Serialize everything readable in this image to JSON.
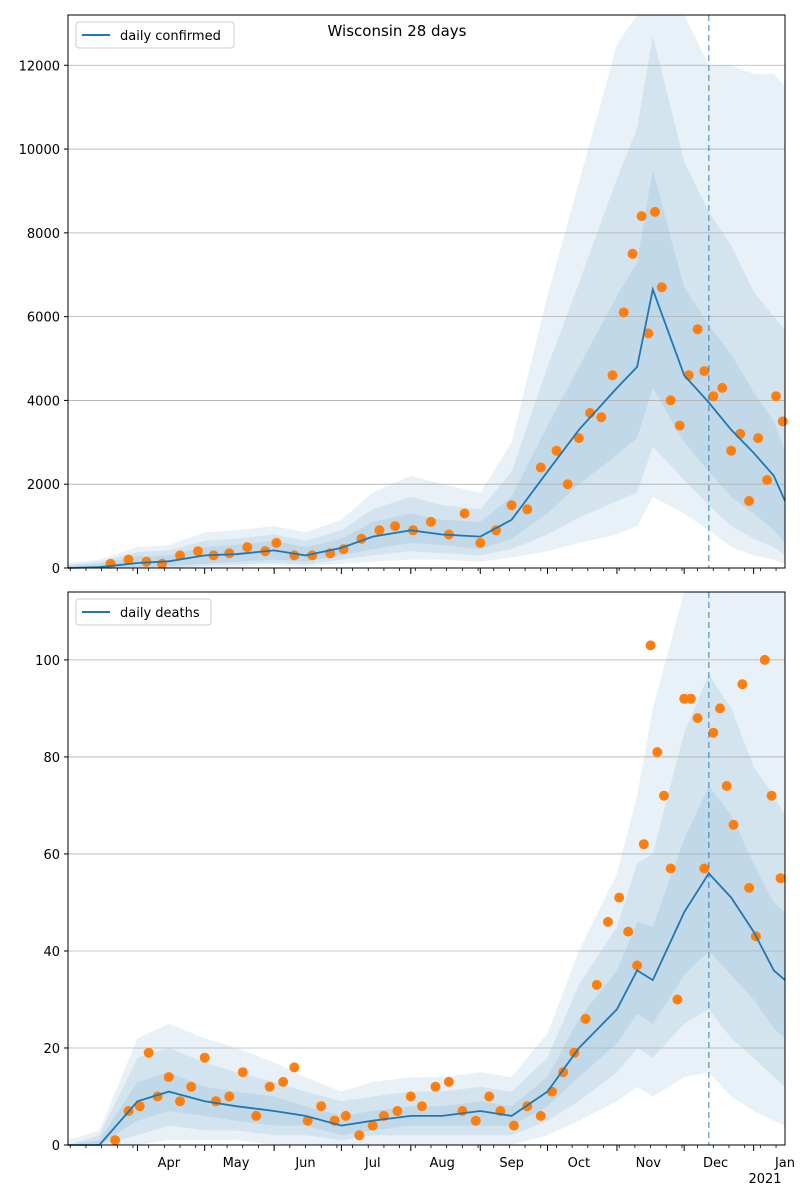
{
  "colors": {
    "line": "#1f77b4",
    "points": "#ff7f0e",
    "band": "#1f77b4",
    "grid": "#b0b0b0",
    "forecast_marker": "#1f77b4"
  },
  "x_axis": {
    "start": "2020-03-01",
    "end": "2021-01-15",
    "month_ticks": [
      "Apr",
      "May",
      "Jun",
      "Jul",
      "Aug",
      "Sep",
      "Oct",
      "Nov",
      "Dec",
      "Jan"
    ],
    "year_label": "2021",
    "forecast_start": "2020-12-12"
  },
  "chart_data": [
    {
      "type": "line",
      "title": "Wisconsin 28 days",
      "legend": {
        "label": "daily confirmed",
        "placement": "top-left"
      },
      "ylim": [
        0,
        13200
      ],
      "yticks": [
        "0",
        "2000",
        "4000",
        "6000",
        "8000",
        "10000",
        "12000"
      ],
      "grid": true,
      "x": [
        "2020-03-01",
        "2020-03-15",
        "2020-04-01",
        "2020-04-15",
        "2020-05-01",
        "2020-05-15",
        "2020-06-01",
        "2020-06-15",
        "2020-07-01",
        "2020-07-15",
        "2020-08-01",
        "2020-08-15",
        "2020-09-01",
        "2020-09-15",
        "2020-10-01",
        "2020-10-15",
        "2020-11-01",
        "2020-11-10",
        "2020-11-17",
        "2020-12-01",
        "2020-12-12",
        "2020-12-22",
        "2021-01-01",
        "2021-01-10",
        "2021-01-15"
      ],
      "series": [
        {
          "name": "daily confirmed",
          "values": [
            0,
            20,
            120,
            160,
            300,
            330,
            420,
            300,
            480,
            750,
            900,
            800,
            750,
            1150,
            2300,
            3300,
            4300,
            4800,
            6650,
            4600,
            3950,
            3300,
            2750,
            2200,
            1600
          ]
        }
      ],
      "bands": [
        {
          "lower": [
            0,
            0,
            20,
            40,
            100,
            150,
            200,
            150,
            300,
            450,
            600,
            550,
            450,
            700,
            1300,
            2000,
            2700,
            3100,
            4300,
            3000,
            2300,
            1700,
            1300,
            900,
            600
          ],
          "upper": [
            50,
            100,
            280,
            300,
            500,
            550,
            650,
            500,
            700,
            1100,
            1300,
            1150,
            1100,
            1700,
            3400,
            4800,
            6500,
            7300,
            9500,
            6700,
            5800,
            5100,
            4200,
            3500,
            2800
          ]
        },
        {
          "lower": [
            0,
            0,
            0,
            0,
            50,
            80,
            120,
            80,
            200,
            300,
            400,
            350,
            300,
            450,
            800,
            1200,
            1600,
            1800,
            2900,
            2100,
            1500,
            1000,
            700,
            500,
            300
          ],
          "upper": [
            80,
            150,
            380,
            420,
            650,
            700,
            800,
            650,
            900,
            1400,
            1700,
            1500,
            1400,
            2300,
            4800,
            6800,
            9300,
            10500,
            12700,
            9700,
            8500,
            7700,
            6600,
            6000,
            5700
          ]
        },
        {
          "lower": [
            0,
            0,
            0,
            0,
            0,
            30,
            60,
            30,
            100,
            150,
            200,
            200,
            150,
            250,
            400,
            600,
            800,
            1000,
            1700,
            1300,
            900,
            500,
            300,
            200,
            100
          ],
          "upper": [
            120,
            200,
            500,
            550,
            850,
            900,
            1000,
            850,
            1150,
            1800,
            2200,
            2000,
            1800,
            3000,
            6500,
            9200,
            12500,
            13200,
            13200,
            13200,
            12000,
            12000,
            11800,
            11800,
            11500
          ]
        }
      ],
      "observed": {
        "x": [
          "2020-03-20",
          "2020-03-28",
          "2020-04-05",
          "2020-04-12",
          "2020-04-20",
          "2020-04-28",
          "2020-05-05",
          "2020-05-12",
          "2020-05-20",
          "2020-05-28",
          "2020-06-02",
          "2020-06-10",
          "2020-06-18",
          "2020-06-26",
          "2020-07-02",
          "2020-07-10",
          "2020-07-18",
          "2020-07-25",
          "2020-08-02",
          "2020-08-10",
          "2020-08-18",
          "2020-08-25",
          "2020-09-01",
          "2020-09-08",
          "2020-09-15",
          "2020-09-22",
          "2020-09-28",
          "2020-10-05",
          "2020-10-10",
          "2020-10-15",
          "2020-10-20",
          "2020-10-25",
          "2020-10-30",
          "2020-11-04",
          "2020-11-08",
          "2020-11-12",
          "2020-11-15",
          "2020-11-18",
          "2020-11-21",
          "2020-11-25",
          "2020-11-29",
          "2020-12-03",
          "2020-12-07",
          "2020-12-10",
          "2020-12-14",
          "2020-12-18",
          "2020-12-22",
          "2020-12-26",
          "2020-12-30",
          "2021-01-03",
          "2021-01-07",
          "2021-01-11",
          "2021-01-14"
        ],
        "values": [
          100,
          200,
          150,
          100,
          300,
          400,
          300,
          350,
          500,
          400,
          600,
          300,
          300,
          350,
          450,
          700,
          900,
          1000,
          900,
          1100,
          800,
          1300,
          600,
          900,
          1500,
          1400,
          2400,
          2800,
          2000,
          3100,
          3700,
          3600,
          4600,
          6100,
          7500,
          8400,
          5600,
          8500,
          6700,
          4000,
          3400,
          4600,
          5700,
          4700,
          4100,
          4300,
          2800,
          3200,
          1600,
          3100,
          2100,
          4100,
          3500
        ]
      }
    },
    {
      "type": "line",
      "legend": {
        "label": "daily deaths",
        "placement": "top-left"
      },
      "ylim": [
        0,
        114
      ],
      "yticks": [
        "0",
        "20",
        "40",
        "60",
        "80",
        "100"
      ],
      "grid": true,
      "x": [
        "2020-03-01",
        "2020-03-15",
        "2020-04-01",
        "2020-04-15",
        "2020-05-01",
        "2020-05-15",
        "2020-06-01",
        "2020-06-15",
        "2020-07-01",
        "2020-07-15",
        "2020-08-01",
        "2020-08-15",
        "2020-09-01",
        "2020-09-15",
        "2020-10-01",
        "2020-10-15",
        "2020-11-01",
        "2020-11-10",
        "2020-11-17",
        "2020-12-01",
        "2020-12-12",
        "2020-12-22",
        "2021-01-01",
        "2021-01-10",
        "2021-01-15"
      ],
      "series": [
        {
          "name": "daily deaths",
          "values": [
            0,
            0,
            9,
            11,
            9,
            8,
            7,
            6,
            4,
            5,
            6,
            6,
            7,
            6,
            11,
            20,
            28,
            36,
            34,
            48,
            56,
            51,
            44,
            36,
            34
          ]
        }
      ],
      "bands": [
        {
          "lower": [
            0,
            0,
            5,
            7,
            6,
            5,
            4,
            4,
            2,
            3,
            4,
            4,
            4,
            4,
            8,
            14,
            21,
            27,
            25,
            35,
            40,
            35,
            30,
            24,
            22
          ],
          "upper": [
            0,
            1,
            13,
            15,
            12,
            11,
            10,
            8,
            6,
            7,
            8,
            8,
            9,
            8,
            14,
            26,
            36,
            46,
            45,
            63,
            74,
            68,
            58,
            50,
            48
          ]
        },
        {
          "lower": [
            0,
            0,
            2,
            4,
            3,
            3,
            2,
            2,
            1,
            2,
            2,
            2,
            2,
            2,
            5,
            9,
            15,
            20,
            18,
            25,
            28,
            22,
            18,
            14,
            12
          ],
          "upper": [
            0,
            2,
            18,
            20,
            17,
            15,
            13,
            11,
            9,
            10,
            11,
            11,
            12,
            11,
            18,
            33,
            45,
            58,
            60,
            85,
            97,
            90,
            78,
            72,
            68
          ]
        },
        {
          "lower": [
            0,
            0,
            0,
            1,
            1,
            1,
            0,
            0,
            0,
            0,
            0,
            0,
            0,
            0,
            2,
            5,
            9,
            12,
            10,
            14,
            15,
            10,
            7,
            5,
            4
          ],
          "upper": [
            1,
            3,
            22,
            25,
            22,
            20,
            17,
            14,
            11,
            13,
            14,
            14,
            15,
            14,
            23,
            40,
            56,
            72,
            90,
            114,
            114,
            114,
            114,
            114,
            114
          ]
        }
      ],
      "observed": {
        "x": [
          "2020-03-22",
          "2020-03-28",
          "2020-04-02",
          "2020-04-06",
          "2020-04-10",
          "2020-04-15",
          "2020-04-20",
          "2020-04-25",
          "2020-05-01",
          "2020-05-06",
          "2020-05-12",
          "2020-05-18",
          "2020-05-24",
          "2020-05-30",
          "2020-06-05",
          "2020-06-10",
          "2020-06-16",
          "2020-06-22",
          "2020-06-28",
          "2020-07-03",
          "2020-07-09",
          "2020-07-15",
          "2020-07-20",
          "2020-07-26",
          "2020-08-01",
          "2020-08-06",
          "2020-08-12",
          "2020-08-18",
          "2020-08-24",
          "2020-08-30",
          "2020-09-05",
          "2020-09-10",
          "2020-09-16",
          "2020-09-22",
          "2020-09-28",
          "2020-10-03",
          "2020-10-08",
          "2020-10-13",
          "2020-10-18",
          "2020-10-23",
          "2020-10-28",
          "2020-11-02",
          "2020-11-06",
          "2020-11-10",
          "2020-11-13",
          "2020-11-16",
          "2020-11-19",
          "2020-11-22",
          "2020-11-25",
          "2020-11-28",
          "2020-12-01",
          "2020-12-04",
          "2020-12-07",
          "2020-12-10",
          "2020-12-14",
          "2020-12-17",
          "2020-12-20",
          "2020-12-23",
          "2020-12-27",
          "2020-12-30",
          "2021-01-02",
          "2021-01-06",
          "2021-01-09",
          "2021-01-13"
        ],
        "values": [
          1,
          7,
          8,
          19,
          10,
          14,
          9,
          12,
          18,
          9,
          10,
          15,
          6,
          12,
          13,
          16,
          5,
          8,
          5,
          6,
          2,
          4,
          6,
          7,
          10,
          8,
          12,
          13,
          7,
          5,
          10,
          7,
          4,
          8,
          6,
          11,
          15,
          19,
          26,
          33,
          46,
          51,
          44,
          37,
          62,
          103,
          81,
          72,
          57,
          30,
          92,
          92,
          88,
          57,
          85,
          90,
          74,
          66,
          95,
          53,
          43,
          100,
          72,
          55
        ]
      }
    }
  ]
}
